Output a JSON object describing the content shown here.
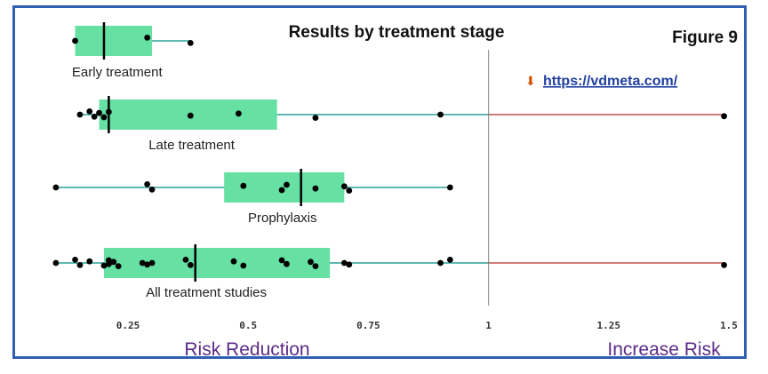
{
  "chart_data": {
    "type": "box",
    "title": "Results by treatment stage",
    "figure_label": "Figure 9",
    "link_text": "https://vdmeta.com/",
    "x_ticks": [
      0.25,
      0.5,
      0.75,
      1,
      1.25,
      1.5
    ],
    "x_tick_labels": [
      "0.25",
      "0.5",
      "0.75",
      "1",
      "1.25",
      "1.5"
    ],
    "xlim": [
      0.1,
      1.53
    ],
    "reference_line": 1,
    "left_band_label": "Risk Reduction",
    "right_band_label": "Increase Risk",
    "colors": {
      "box": "#66e0a3",
      "whisker": "#2aa198",
      "above_one": "#c0504d",
      "points": "#000000",
      "frame": "#2f5fb3",
      "band_text": "#5b2a86"
    },
    "groups": [
      {
        "name": "Early treatment",
        "q1": 0.14,
        "median": 0.2,
        "q3": 0.3,
        "min": 0.14,
        "max": 0.38,
        "points": [
          0.14,
          0.29,
          0.38
        ]
      },
      {
        "name": "Late treatment",
        "q1": 0.19,
        "median": 0.21,
        "q3": 0.56,
        "min": 0.15,
        "max": 1.49,
        "points": [
          0.15,
          0.17,
          0.18,
          0.19,
          0.2,
          0.21,
          0.38,
          0.48,
          0.64,
          0.9,
          1.49
        ]
      },
      {
        "name": "Prophylaxis",
        "q1": 0.45,
        "median": 0.61,
        "q3": 0.7,
        "min": 0.1,
        "max": 0.92,
        "points": [
          0.1,
          0.29,
          0.3,
          0.49,
          0.57,
          0.58,
          0.64,
          0.7,
          0.71,
          0.92
        ]
      },
      {
        "name": "All treatment studies",
        "q1": 0.2,
        "median": 0.39,
        "q3": 0.67,
        "min": 0.1,
        "max": 1.49,
        "points": [
          0.1,
          0.14,
          0.15,
          0.17,
          0.2,
          0.21,
          0.21,
          0.22,
          0.23,
          0.28,
          0.29,
          0.3,
          0.37,
          0.38,
          0.47,
          0.49,
          0.57,
          0.58,
          0.63,
          0.64,
          0.7,
          0.71,
          0.9,
          0.92,
          1.49
        ]
      }
    ]
  }
}
